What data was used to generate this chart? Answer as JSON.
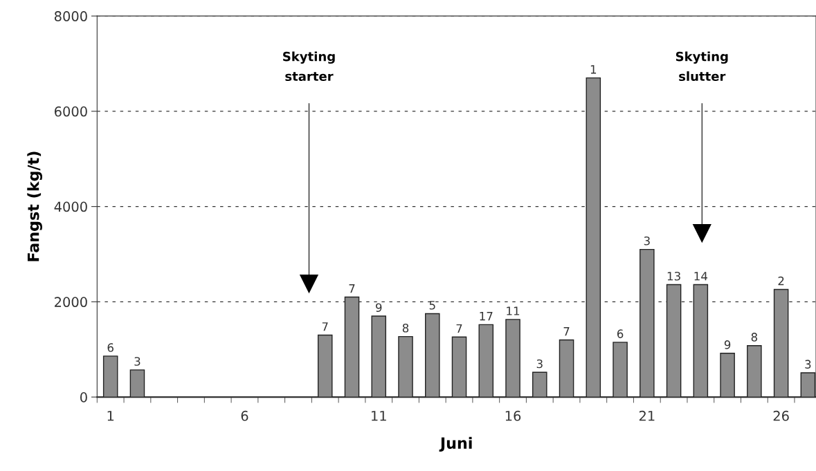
{
  "chart_data": {
    "type": "bar",
    "xlabel": "Juni",
    "ylabel": "Fangst (kg/t)",
    "x": [
      1,
      2,
      9,
      10,
      11,
      12,
      13,
      14,
      15,
      16,
      17,
      18,
      19,
      20,
      21,
      22,
      23,
      24,
      25,
      26,
      27
    ],
    "values": [
      860,
      570,
      1300,
      2100,
      1700,
      1270,
      1750,
      1260,
      1520,
      1630,
      520,
      1200,
      6700,
      1150,
      3100,
      2360,
      2360,
      920,
      1080,
      2260,
      510
    ],
    "color": "#8c8c8c",
    "xlim": [
      0.5,
      27.3
    ],
    "xticks": [
      1,
      6,
      11,
      16,
      21,
      26,
      {
        "value": 0.5,
        "label": null
      },
      {
        "value": 1.5,
        "label": null
      },
      {
        "value": 2.5,
        "label": null
      },
      {
        "value": 3.5,
        "label": null
      },
      {
        "value": 4.5,
        "label": null
      },
      {
        "value": 5.5,
        "label": null
      },
      {
        "value": 6.5,
        "label": null
      },
      {
        "value": 7.5,
        "label": null
      },
      {
        "value": 8.5,
        "label": null
      },
      {
        "value": 9.5,
        "label": null
      },
      {
        "value": 10.5,
        "label": null
      },
      {
        "value": 11.5,
        "label": null
      },
      {
        "value": 12.5,
        "label": null
      },
      {
        "value": 13.5,
        "label": null
      },
      {
        "value": 14.5,
        "label": null
      },
      {
        "value": 15.5,
        "label": null
      },
      {
        "value": 16.5,
        "label": null
      },
      {
        "value": 17.5,
        "label": null
      },
      {
        "value": 18.5,
        "label": null
      },
      {
        "value": 19.5,
        "label": null
      },
      {
        "value": 20.5,
        "label": null
      },
      {
        "value": 21.5,
        "label": null
      },
      {
        "value": 22.5,
        "label": null
      },
      {
        "value": 23.5,
        "label": null
      },
      {
        "value": 24.5,
        "label": null
      },
      {
        "value": 25.5,
        "label": null
      },
      {
        "value": 26.5,
        "label": null
      }
    ],
    "ylim": [
      0,
      8000
    ],
    "yticks": [
      0,
      2000,
      4000,
      6000,
      8000
    ],
    "grid": "y",
    "legend": false,
    "ref_lines": [
      {
        "axis": "x",
        "value": 8.4,
        "label": "Skyting\nstarter"
      },
      {
        "axis": "x",
        "value": 23.05,
        "label": "Skyting\nslutter"
      }
    ],
    "annotations": [
      {
        "text": "6",
        "x": 1,
        "y": 860
      },
      {
        "text": "3",
        "x": 2,
        "y": 570
      },
      {
        "text": "7",
        "x": 9,
        "y": 1300
      },
      {
        "text": "7",
        "x": 10,
        "y": 2100
      },
      {
        "text": "9",
        "x": 11,
        "y": 1700
      },
      {
        "text": "8",
        "x": 12,
        "y": 1270
      },
      {
        "text": "5",
        "x": 13,
        "y": 1750
      },
      {
        "text": "7",
        "x": 14,
        "y": 1260
      },
      {
        "text": "17",
        "x": 15,
        "y": 1520
      },
      {
        "text": "11",
        "x": 16,
        "y": 1630
      },
      {
        "text": "3",
        "x": 17,
        "y": 520
      },
      {
        "text": "7",
        "x": 18,
        "y": 1200
      },
      {
        "text": "1",
        "x": 19,
        "y": 6700
      },
      {
        "text": "6",
        "x": 20,
        "y": 1150
      },
      {
        "text": "3",
        "x": 21,
        "y": 3100
      },
      {
        "text": "13",
        "x": 22,
        "y": 2360
      },
      {
        "text": "14",
        "x": 23,
        "y": 2360
      },
      {
        "text": "9",
        "x": 24,
        "y": 920
      },
      {
        "text": "8",
        "x": 25,
        "y": 1080
      },
      {
        "text": "2",
        "x": 26,
        "y": 2260
      },
      {
        "text": "3",
        "x": 27,
        "y": 510
      }
    ]
  }
}
